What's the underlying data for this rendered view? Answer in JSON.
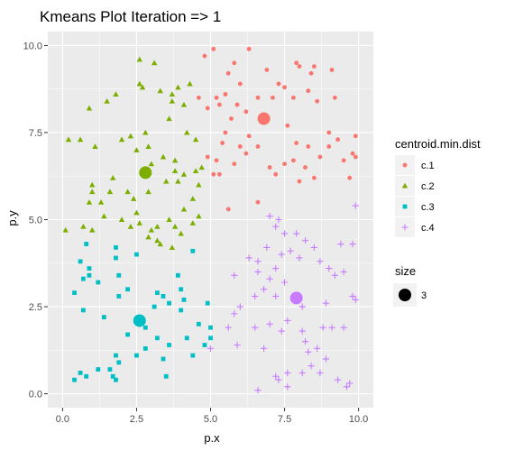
{
  "chart_data": {
    "type": "scatter",
    "title": "Kmeans Plot Iteration => 1",
    "xlabel": "p.x",
    "ylabel": "p.y",
    "xlim": [
      -0.5,
      10.5
    ],
    "ylim": [
      -0.4,
      10.4
    ],
    "xticks": [
      0,
      2.5,
      5,
      7.5,
      10
    ],
    "yticks": [
      0,
      2.5,
      5,
      7.5,
      10
    ],
    "xtick_labels": [
      "0.0",
      "2.5",
      "5.0",
      "7.5",
      "10.0"
    ],
    "ytick_labels": [
      "0.0",
      "2.5",
      "5.0",
      "7.5",
      "10.0"
    ],
    "grid": true,
    "legend": {
      "placement": "right",
      "color_title": "centroid.min.dist",
      "size_title": "size",
      "size_label": "3"
    },
    "series": [
      {
        "name": "c.1",
        "color": "#F8766D",
        "shape": "circle",
        "centroid": [
          6.8,
          7.9
        ],
        "points": [
          [
            5.1,
            9.9
          ],
          [
            4.8,
            9.7
          ],
          [
            5.8,
            9.5
          ],
          [
            6.3,
            9.9
          ],
          [
            6.9,
            9.3
          ],
          [
            5.6,
            9.2
          ],
          [
            6.6,
            8.5
          ],
          [
            7.1,
            8.5
          ],
          [
            7.3,
            8.9
          ],
          [
            7.9,
            9.5
          ],
          [
            8.0,
            9.4
          ],
          [
            8.5,
            9.4
          ],
          [
            8.3,
            8.7
          ],
          [
            7.5,
            8.8
          ],
          [
            7.8,
            8.5
          ],
          [
            8.6,
            8.4
          ],
          [
            9.1,
            9.3
          ],
          [
            9.2,
            8.5
          ],
          [
            6.0,
            8.9
          ],
          [
            5.5,
            8.6
          ],
          [
            5.9,
            8.3
          ],
          [
            6.2,
            8.1
          ],
          [
            5.3,
            8.3
          ],
          [
            5.2,
            8.5
          ],
          [
            4.6,
            8.5
          ],
          [
            5.7,
            7.9
          ],
          [
            5.5,
            7.5
          ],
          [
            6.3,
            7.4
          ],
          [
            6.6,
            7.1
          ],
          [
            7.6,
            7.7
          ],
          [
            7.9,
            7.2
          ],
          [
            7.8,
            6.7
          ],
          [
            8.3,
            7.1
          ],
          [
            8.7,
            6.8
          ],
          [
            8.2,
            6.5
          ],
          [
            8.0,
            6.1
          ],
          [
            7.2,
            6.3
          ],
          [
            7.5,
            6.6
          ],
          [
            7.0,
            6.5
          ],
          [
            6.2,
            6.9
          ],
          [
            6.0,
            7.1
          ],
          [
            5.4,
            7.2
          ],
          [
            5.2,
            6.7
          ],
          [
            4.9,
            6.8
          ],
          [
            4.9,
            8.2
          ],
          [
            5.1,
            6.3
          ],
          [
            5.3,
            6.3
          ],
          [
            5.8,
            6.6
          ],
          [
            9.0,
            7.5
          ],
          [
            9.3,
            7.3
          ],
          [
            9.0,
            7.1
          ],
          [
            9.5,
            6.7
          ],
          [
            9.9,
            6.8
          ],
          [
            9.9,
            7.4
          ],
          [
            9.8,
            6.9
          ],
          [
            9.7,
            6.2
          ],
          [
            8.5,
            6.2
          ],
          [
            6.6,
            5.5
          ],
          [
            5.6,
            5.3
          ],
          [
            8.4,
            9.2
          ]
        ]
      },
      {
        "name": "c.2",
        "color": "#7CAE00",
        "shape": "triangle",
        "centroid": [
          2.8,
          6.35
        ],
        "points": [
          [
            2.6,
            9.6
          ],
          [
            3.1,
            9.5
          ],
          [
            2.6,
            8.9
          ],
          [
            2.7,
            8.8
          ],
          [
            3.3,
            8.7
          ],
          [
            3.7,
            8.6
          ],
          [
            3.9,
            8.8
          ],
          [
            4.3,
            8.9
          ],
          [
            4.1,
            8.3
          ],
          [
            3.6,
            7.9
          ],
          [
            3.7,
            8.4
          ],
          [
            1.8,
            8.6
          ],
          [
            1.5,
            8.4
          ],
          [
            0.9,
            8.2
          ],
          [
            0.2,
            7.3
          ],
          [
            0.6,
            7.3
          ],
          [
            1.1,
            7.1
          ],
          [
            2.0,
            7.3
          ],
          [
            2.3,
            7.4
          ],
          [
            2.8,
            7.5
          ],
          [
            2.9,
            7.1
          ],
          [
            4.2,
            7.5
          ],
          [
            4.5,
            7.3
          ],
          [
            2.5,
            7.0
          ],
          [
            3.0,
            6.6
          ],
          [
            3.4,
            6.8
          ],
          [
            3.8,
            6.7
          ],
          [
            1.7,
            6.2
          ],
          [
            1.6,
            5.8
          ],
          [
            1.3,
            5.5
          ],
          [
            1.0,
            6.0
          ],
          [
            1.0,
            5.8
          ],
          [
            0.9,
            5.5
          ],
          [
            2.2,
            5.8
          ],
          [
            2.4,
            5.6
          ],
          [
            2.9,
            5.8
          ],
          [
            3.5,
            6.1
          ],
          [
            3.8,
            6.4
          ],
          [
            3.9,
            6.1
          ],
          [
            4.1,
            6.3
          ],
          [
            4.5,
            6.4
          ],
          [
            4.7,
            6.5
          ],
          [
            4.6,
            6.0
          ],
          [
            4.4,
            5.6
          ],
          [
            4.1,
            5.3
          ],
          [
            4.6,
            5.1
          ],
          [
            4.4,
            4.9
          ],
          [
            4.0,
            4.6
          ],
          [
            3.8,
            4.8
          ],
          [
            3.6,
            5.0
          ],
          [
            3.2,
            4.8
          ],
          [
            2.6,
            4.9
          ],
          [
            2.3,
            4.8
          ],
          [
            2.0,
            5.0
          ],
          [
            1.4,
            5.1
          ],
          [
            0.7,
            4.8
          ],
          [
            0.1,
            4.7
          ],
          [
            1.0,
            4.7
          ],
          [
            3.2,
            4.4
          ],
          [
            3.3,
            4.3
          ],
          [
            2.9,
            4.5
          ],
          [
            3.0,
            4.7
          ],
          [
            3.7,
            4.2
          ],
          [
            2.5,
            5.2
          ]
        ]
      },
      {
        "name": "c.3",
        "color": "#00BFC4",
        "shape": "square",
        "centroid": [
          2.6,
          2.1
        ],
        "points": [
          [
            0.8,
            4.3
          ],
          [
            1.8,
            4.2
          ],
          [
            2.5,
            4.0
          ],
          [
            4.4,
            4.1
          ],
          [
            0.6,
            3.8
          ],
          [
            1.8,
            3.9
          ],
          [
            0.9,
            3.6
          ],
          [
            0.9,
            3.4
          ],
          [
            0.7,
            3.3
          ],
          [
            1.2,
            3.2
          ],
          [
            1.9,
            3.4
          ],
          [
            2.2,
            3.0
          ],
          [
            3.2,
            2.9
          ],
          [
            3.4,
            2.8
          ],
          [
            3.6,
            2.6
          ],
          [
            3.1,
            2.5
          ],
          [
            3.9,
            3.4
          ],
          [
            4.0,
            3.0
          ],
          [
            4.1,
            2.7
          ],
          [
            4.0,
            2.4
          ],
          [
            4.9,
            2.6
          ],
          [
            1.9,
            2.8
          ],
          [
            0.4,
            2.9
          ],
          [
            0.7,
            2.4
          ],
          [
            1.4,
            2.2
          ],
          [
            2.2,
            1.7
          ],
          [
            2.8,
            1.9
          ],
          [
            3.2,
            1.6
          ],
          [
            4.2,
            1.6
          ],
          [
            5.0,
            1.9
          ],
          [
            5.0,
            1.6
          ],
          [
            4.6,
            2.0
          ],
          [
            3.6,
            1.4
          ],
          [
            3.4,
            1.0
          ],
          [
            4.4,
            1.1
          ],
          [
            4.8,
            1.4
          ],
          [
            2.5,
            1.1
          ],
          [
            1.8,
            1.1
          ],
          [
            1.9,
            0.9
          ],
          [
            1.6,
            0.7
          ],
          [
            1.7,
            0.5
          ],
          [
            1.2,
            0.7
          ],
          [
            1.8,
            0.4
          ],
          [
            0.6,
            0.6
          ],
          [
            0.8,
            0.5
          ],
          [
            0.4,
            0.4
          ],
          [
            2.8,
            1.3
          ],
          [
            3.5,
            0.5
          ]
        ]
      },
      {
        "name": "c.4",
        "color": "#C77CFF",
        "shape": "plus",
        "centroid": [
          7.9,
          2.75
        ],
        "points": [
          [
            7.0,
            5.1
          ],
          [
            7.3,
            5.0
          ],
          [
            7.2,
            4.8
          ],
          [
            7.5,
            4.6
          ],
          [
            7.9,
            4.6
          ],
          [
            8.2,
            4.4
          ],
          [
            8.5,
            4.2
          ],
          [
            9.9,
            5.4
          ],
          [
            9.4,
            4.3
          ],
          [
            9.8,
            4.3
          ],
          [
            7.7,
            4.1
          ],
          [
            7.4,
            4.0
          ],
          [
            8.0,
            3.9
          ],
          [
            8.7,
            3.8
          ],
          [
            9.0,
            3.6
          ],
          [
            9.2,
            3.4
          ],
          [
            9.5,
            3.5
          ],
          [
            6.3,
            3.9
          ],
          [
            6.6,
            3.8
          ],
          [
            6.9,
            4.2
          ],
          [
            6.6,
            3.5
          ],
          [
            7.0,
            3.3
          ],
          [
            7.5,
            3.2
          ],
          [
            6.8,
            3.0
          ],
          [
            6.5,
            2.8
          ],
          [
            7.2,
            2.8
          ],
          [
            5.8,
            3.4
          ],
          [
            9.8,
            2.8
          ],
          [
            9.9,
            2.7
          ],
          [
            8.9,
            2.6
          ],
          [
            8.1,
            2.5
          ],
          [
            6.0,
            2.5
          ],
          [
            5.8,
            2.3
          ],
          [
            7.0,
            2.0
          ],
          [
            7.6,
            2.1
          ],
          [
            5.6,
            1.9
          ],
          [
            6.5,
            1.9
          ],
          [
            7.4,
            1.8
          ],
          [
            8.1,
            1.8
          ],
          [
            8.8,
            1.9
          ],
          [
            9.1,
            1.9
          ],
          [
            9.5,
            1.9
          ],
          [
            8.2,
            1.5
          ],
          [
            8.6,
            1.3
          ],
          [
            8.3,
            1.2
          ],
          [
            5.9,
            1.4
          ],
          [
            6.8,
            1.3
          ],
          [
            5.0,
            1.3
          ],
          [
            8.9,
            1.0
          ],
          [
            8.4,
            0.8
          ],
          [
            7.6,
            0.6
          ],
          [
            8.1,
            0.6
          ],
          [
            7.3,
            0.4
          ],
          [
            7.2,
            0.5
          ],
          [
            9.3,
            0.4
          ],
          [
            9.6,
            0.2
          ],
          [
            9.7,
            0.3
          ],
          [
            8.7,
            0.6
          ],
          [
            7.6,
            0.2
          ],
          [
            6.6,
            0.1
          ],
          [
            7.2,
            3.6
          ]
        ]
      }
    ]
  }
}
